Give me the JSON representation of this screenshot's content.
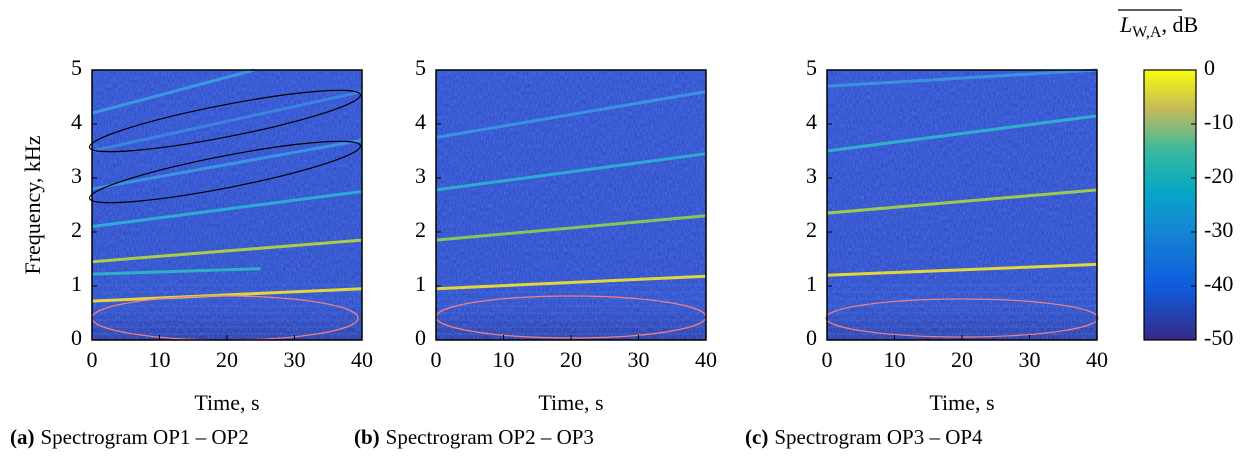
{
  "chart_data": [
    {
      "type": "spectrogram",
      "caption_tag": "(a)",
      "caption": "Spectrogram OP1 – OP2",
      "xlabel": "Time, s",
      "ylabel": "Frequency, kHz",
      "xlim": [
        0,
        40
      ],
      "xticks": [
        0,
        10,
        20,
        30,
        40
      ],
      "ylim": [
        0,
        5
      ],
      "yticks": [
        0,
        1,
        2,
        3,
        4,
        5
      ],
      "series": [
        {
          "color": "#f5e32a",
          "x": [
            0,
            40
          ],
          "values": [
            0.72,
            0.95
          ]
        },
        {
          "color": "#2fb8c8",
          "x": [
            0,
            25
          ],
          "values": [
            1.22,
            1.32
          ]
        },
        {
          "color": "#b8d83a",
          "x": [
            0,
            40
          ],
          "values": [
            1.45,
            1.85
          ]
        },
        {
          "color": "#2fb3d0",
          "x": [
            0,
            40
          ],
          "values": [
            2.1,
            2.75
          ]
        },
        {
          "color": "#3a9ae0",
          "x": [
            0,
            40
          ],
          "values": [
            2.8,
            3.7
          ]
        },
        {
          "color": "#3a88e0",
          "x": [
            0,
            40
          ],
          "values": [
            3.5,
            4.6
          ]
        },
        {
          "color": "#3aa0e0",
          "x": [
            0,
            24
          ],
          "values": [
            4.2,
            5.0
          ]
        }
      ]
    },
    {
      "type": "spectrogram",
      "caption_tag": "(b)",
      "caption": "Spectrogram OP2 – OP3",
      "xlabel": "Time, s",
      "xlim": [
        0,
        40
      ],
      "xticks": [
        0,
        10,
        20,
        30,
        40
      ],
      "ylim": [
        0,
        5
      ],
      "yticks": [
        0,
        1,
        2,
        3,
        4,
        5
      ],
      "series": [
        {
          "color": "#f5e32a",
          "x": [
            0,
            40
          ],
          "values": [
            0.95,
            1.18
          ]
        },
        {
          "color": "#8fd04a",
          "x": [
            0,
            40
          ],
          "values": [
            1.85,
            2.3
          ]
        },
        {
          "color": "#2fb3d0",
          "x": [
            0,
            40
          ],
          "values": [
            2.78,
            3.45
          ]
        },
        {
          "color": "#3a98e0",
          "x": [
            0,
            40
          ],
          "values": [
            3.75,
            4.6
          ]
        }
      ]
    },
    {
      "type": "spectrogram",
      "caption_tag": "(c)",
      "caption": "Spectrogram OP3 – OP4",
      "xlabel": "Time, s",
      "xlim": [
        0,
        40
      ],
      "xticks": [
        0,
        10,
        20,
        30,
        40
      ],
      "ylim": [
        0,
        5
      ],
      "yticks": [
        0,
        1,
        2,
        3,
        4,
        5
      ],
      "series": [
        {
          "color": "#f5e32a",
          "x": [
            0,
            40
          ],
          "values": [
            1.2,
            1.4
          ]
        },
        {
          "color": "#a8d540",
          "x": [
            0,
            40
          ],
          "values": [
            2.35,
            2.78
          ]
        },
        {
          "color": "#2fb8c8",
          "x": [
            0,
            40
          ],
          "values": [
            3.5,
            4.15
          ]
        },
        {
          "color": "#3a98e0",
          "x": [
            0,
            40
          ],
          "values": [
            4.7,
            5.0
          ]
        }
      ]
    },
    {
      "type": "colorbar",
      "symbol": "L",
      "subscript": "W,A",
      "unit": ", dB",
      "lim": [
        -50,
        0
      ],
      "ticks": [
        0,
        -10,
        -20,
        -30,
        -40,
        -50
      ]
    }
  ]
}
